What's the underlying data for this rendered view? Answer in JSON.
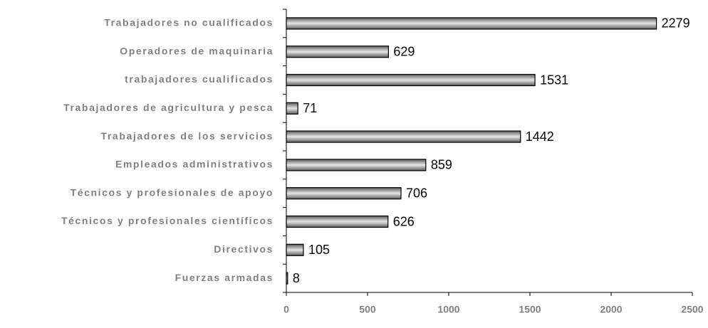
{
  "chart_data": {
    "type": "bar",
    "orientation": "horizontal",
    "categories": [
      "Trabajadores no cualificados",
      "Operadores de maquinaria",
      "trabajadores cualificados",
      "Trabajadores de agricultura y pesca",
      "Trabajadores de los servicios",
      "Empleados administrativos",
      "Técnicos y profesionales de apoyo",
      "Técnicos y profesionales científicos",
      "Directivos",
      "Fuerzas armadas"
    ],
    "values": [
      2279,
      629,
      1531,
      71,
      1442,
      859,
      706,
      626,
      105,
      8
    ],
    "color": "#5a5a5a",
    "xlim": [
      0,
      2500
    ],
    "xticks": [
      0,
      500,
      1000,
      1500,
      2000,
      2500
    ],
    "grid": false
  }
}
